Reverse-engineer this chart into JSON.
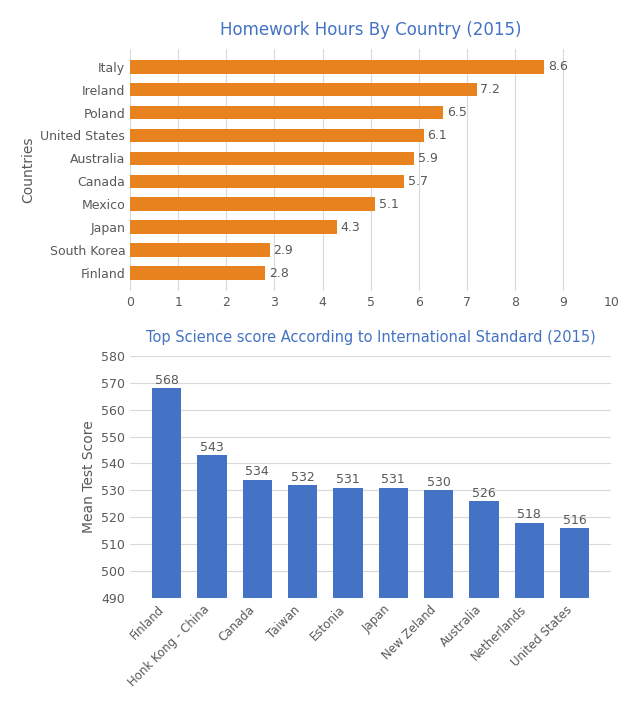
{
  "chart1": {
    "title": "Homework Hours By Country (2015)",
    "title_color": "#4472C4",
    "ylabel": "Countries",
    "countries": [
      "Italy",
      "Ireland",
      "Poland",
      "United States",
      "Australia",
      "Canada",
      "Mexico",
      "Japan",
      "South Korea",
      "Finland"
    ],
    "values": [
      8.6,
      7.2,
      6.5,
      6.1,
      5.9,
      5.7,
      5.1,
      4.3,
      2.9,
      2.8
    ],
    "bar_color": "#E8821E",
    "xlim": [
      0,
      10
    ],
    "xticks": [
      0,
      1,
      2,
      3,
      4,
      5,
      6,
      7,
      8,
      9,
      10
    ],
    "label_color": "#595959",
    "label_fontsize": 9
  },
  "chart2": {
    "title": "Top Science score According to International Standard (2015)",
    "title_color": "#4472C4",
    "ylabel": "Mean Test Score",
    "countries": [
      "Finland",
      "Honk Kong - China",
      "Canada",
      "Taiwan",
      "Estonia",
      "Japan",
      "New Zeland",
      "Australia",
      "Netherlands",
      "United States"
    ],
    "values": [
      568,
      543,
      534,
      532,
      531,
      531,
      530,
      526,
      518,
      516
    ],
    "bar_color": "#4472C4",
    "ylim": [
      490,
      580
    ],
    "yticks": [
      490,
      500,
      510,
      520,
      530,
      540,
      550,
      560,
      570,
      580
    ],
    "label_color": "#595959",
    "label_fontsize": 9
  },
  "bg_color": "#FFFFFF",
  "grid_color": "#D9D9D9",
  "tick_color": "#595959"
}
